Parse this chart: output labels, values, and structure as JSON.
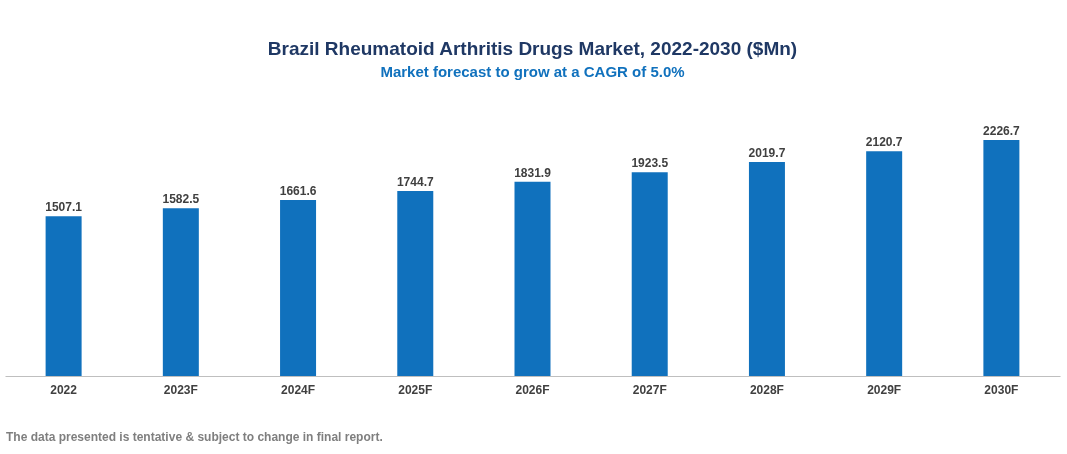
{
  "chart_data": {
    "type": "bar",
    "title": "Brazil Rheumatoid Arthritis Drugs Market, 2022-2030 ($Mn)",
    "subtitle": "Market forecast to grow at a CAGR of 5.0%",
    "categories": [
      "2022",
      "2023F",
      "2024F",
      "2025F",
      "2026F",
      "2027F",
      "2028F",
      "2029F",
      "2030F"
    ],
    "values": [
      1507.1,
      1582.5,
      1661.6,
      1744.7,
      1831.9,
      1923.5,
      2019.7,
      2120.7,
      2226.7
    ],
    "color": "#1071bd",
    "data_labels": true,
    "annotations": [
      "The data presented is tentative & subject to change in final report."
    ]
  }
}
